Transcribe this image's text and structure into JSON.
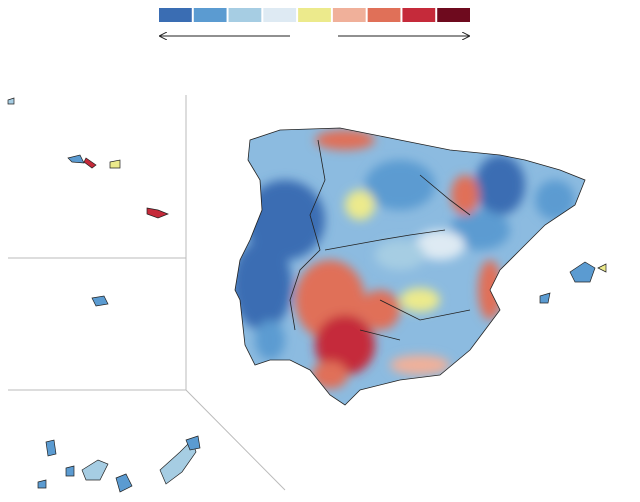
{
  "legend": {
    "colors": [
      "#3a6db3",
      "#5b9bd1",
      "#a6cde3",
      "#deeaf3",
      "#ecea8c",
      "#f0b09a",
      "#e07058",
      "#c52a3a",
      "#6e0a1e"
    ]
  }
}
